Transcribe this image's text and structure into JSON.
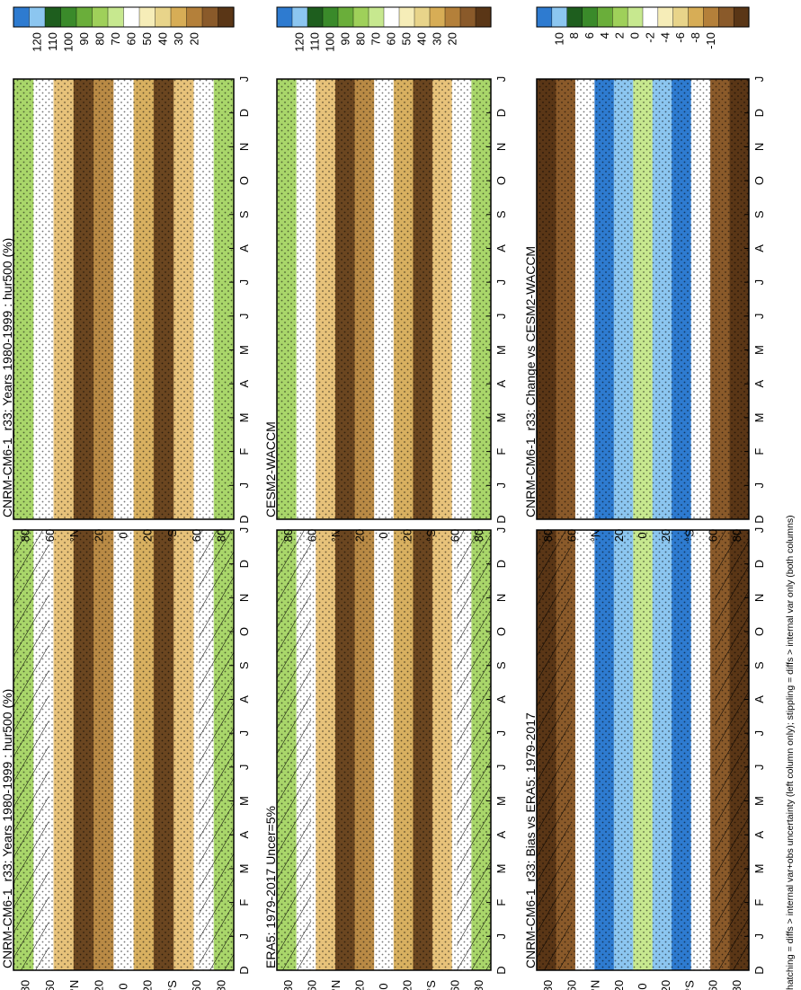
{
  "footer": "hatching = diffs > internal var+obs uncertainty (left column only); stippling = diffs > internal var only (both columns)",
  "chart_data": [
    {
      "type": "heatmap",
      "panel_id": "p-left-top",
      "title": "CNRM-CM6-1_r33: Years 1980-1999 : hur500 (%)",
      "x_ticks": [
        "D",
        "J",
        "F",
        "M",
        "A",
        "M",
        "J",
        "J",
        "A",
        "S",
        "O",
        "N",
        "D",
        "J"
      ],
      "y_ticks": [
        "80",
        "60",
        "°N",
        "20",
        "0",
        "20",
        "°S",
        "60",
        "80"
      ],
      "colorbar_labels": [
        "120",
        "110",
        "100",
        "90",
        "80",
        "70",
        "60",
        "50",
        "40",
        "30",
        "20"
      ],
      "hatching": true,
      "stippling": true
    },
    {
      "type": "heatmap",
      "panel_id": "p-left-mid",
      "title": "ERA5: 1979-2017 Uncer=5%",
      "x_ticks": [
        "D",
        "J",
        "F",
        "M",
        "A",
        "M",
        "J",
        "J",
        "A",
        "S",
        "O",
        "N",
        "D",
        "J"
      ],
      "y_ticks": [
        "80",
        "60",
        "°N",
        "20",
        "0",
        "20",
        "°S",
        "60",
        "80"
      ],
      "colorbar_labels": [
        "120",
        "110",
        "100",
        "90",
        "80",
        "70",
        "60",
        "50",
        "40",
        "30",
        "20"
      ],
      "hatching": true,
      "stippling": true
    },
    {
      "type": "heatmap",
      "panel_id": "p-left-bot",
      "title": "CNRM-CM6-1_r33: Bias vs ERA5: 1979-2017",
      "x_ticks": [
        "D",
        "J",
        "F",
        "M",
        "A",
        "M",
        "J",
        "J",
        "A",
        "S",
        "O",
        "N",
        "D",
        "J"
      ],
      "y_ticks": [
        "80",
        "60",
        "°N",
        "20",
        "0",
        "20",
        "°S",
        "60",
        "80"
      ],
      "colorbar_labels": [
        "10",
        "8",
        "6",
        "4",
        "2",
        "0",
        "-2",
        "-4",
        "-6",
        "-8",
        "-10"
      ],
      "hatching": true,
      "stippling": true
    },
    {
      "type": "heatmap",
      "panel_id": "p-right-top",
      "title": "CNRM-CM6-1_r33: Years 1980-1999 : hur500 (%)",
      "x_ticks": [
        "D",
        "J",
        "F",
        "M",
        "A",
        "M",
        "J",
        "J",
        "A",
        "S",
        "O",
        "N",
        "D",
        "J"
      ],
      "y_ticks": [
        "80",
        "60",
        "°N",
        "20",
        "0",
        "20",
        "°S",
        "60",
        "80"
      ],
      "colorbar_labels": [
        "120",
        "110",
        "100",
        "90",
        "80",
        "70",
        "60",
        "50",
        "40",
        "30",
        "20"
      ],
      "hatching": false,
      "stippling": true
    },
    {
      "type": "heatmap",
      "panel_id": "p-right-mid",
      "title": "CESM2-WACCM",
      "x_ticks": [
        "D",
        "J",
        "F",
        "M",
        "A",
        "M",
        "J",
        "J",
        "A",
        "S",
        "O",
        "N",
        "D",
        "J"
      ],
      "y_ticks": [
        "80",
        "60",
        "°N",
        "20",
        "0",
        "20",
        "°S",
        "60",
        "80"
      ],
      "colorbar_labels": [
        "120",
        "110",
        "100",
        "90",
        "80",
        "70",
        "60",
        "50",
        "40",
        "30",
        "20"
      ],
      "hatching": false,
      "stippling": true
    },
    {
      "type": "heatmap",
      "panel_id": "p-right-bot",
      "title": "CNRM-CM6-1_r33: Change vs CESM2-WACCM",
      "x_ticks": [
        "D",
        "J",
        "F",
        "M",
        "A",
        "M",
        "J",
        "J",
        "A",
        "S",
        "O",
        "N",
        "D",
        "J"
      ],
      "y_ticks": [
        "80",
        "60",
        "°N",
        "20",
        "0",
        "20",
        "°S",
        "60",
        "80"
      ],
      "colorbar_labels": [
        "10",
        "8",
        "6",
        "4",
        "2",
        "0",
        "-2",
        "-4",
        "-6",
        "-8",
        "-10"
      ],
      "hatching": false,
      "stippling": true
    }
  ]
}
